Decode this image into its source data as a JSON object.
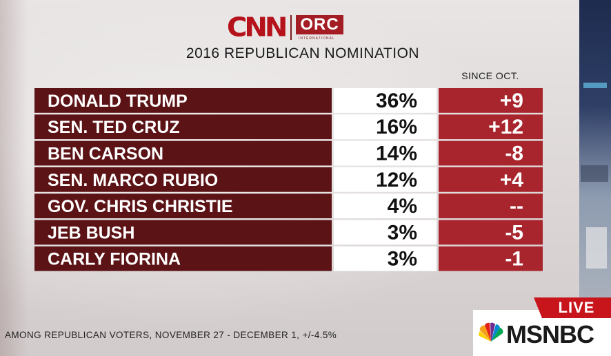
{
  "header": {
    "logo_main": "CNN",
    "logo_partner": "ORC",
    "logo_partner_sub": "INTERNATIONAL"
  },
  "chart_data": {
    "type": "table",
    "title": "2016 REPUBLICAN NOMINATION",
    "change_header": "SINCE OCT.",
    "rows": [
      {
        "label": "DONALD TRUMP",
        "value": "36%",
        "change": "+9"
      },
      {
        "label": "SEN. TED CRUZ",
        "value": "16%",
        "change": "+12"
      },
      {
        "label": "BEN CARSON",
        "value": "14%",
        "change": "-8"
      },
      {
        "label": "SEN. MARCO RUBIO",
        "value": "12%",
        "change": "+4"
      },
      {
        "label": "GOV. CHRIS CHRISTIE",
        "value": "4%",
        "change": "--"
      },
      {
        "label": "JEB BUSH",
        "value": "3%",
        "change": "-5"
      },
      {
        "label": "CARLY FIORINA",
        "value": "3%",
        "change": "-1"
      }
    ],
    "footnote": "AMONG REPUBLICAN VOTERS, NOVEMBER 27 - DECEMBER 1, +/-4.5%",
    "colors": {
      "label_bg": "#5c1316",
      "label_text": "#ffffff",
      "value_bg": "#ffffff",
      "value_text": "#111111",
      "change_bg": "#a8252d",
      "change_text": "#ffffff"
    }
  },
  "broadcast": {
    "live_label": "LIVE",
    "network_label": "MSNBC",
    "network_icon": "peacock-icon"
  }
}
